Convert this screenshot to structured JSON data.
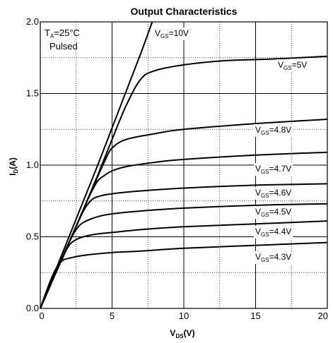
{
  "chart_data": {
    "type": "line",
    "title": "Output Characteristics",
    "xlabel": {
      "main": "V",
      "sub": "DS",
      "unit": "(V)"
    },
    "ylabel": {
      "main": "I",
      "sub": "D",
      "unit": "(A)"
    },
    "xlim": [
      0,
      20
    ],
    "ylim": [
      0,
      2.0
    ],
    "x_ticks": [
      0,
      5,
      10,
      15,
      20
    ],
    "x_tick_labels": [
      "0",
      "5",
      "10",
      "15",
      "20"
    ],
    "y_ticks": [
      0,
      0.5,
      1.0,
      1.5,
      2.0
    ],
    "y_tick_labels": [
      "0.0",
      "0.5",
      "1.0",
      "1.5",
      "2.0"
    ],
    "grid": {
      "major": "solid",
      "minor": "dotted"
    },
    "notes": [
      {
        "main": "T",
        "sub": "A",
        "rest": "=25°C"
      },
      {
        "main": "Pulsed",
        "sub": "",
        "rest": ""
      }
    ],
    "series": [
      {
        "label": {
          "main": "V",
          "sub": "GS",
          "rest": "=10V"
        },
        "x": [
          0,
          1,
          2,
          3,
          4,
          5,
          6,
          7,
          7.8
        ],
        "y": [
          0,
          0.25,
          0.5,
          0.75,
          1.0,
          1.26,
          1.52,
          1.78,
          2.0
        ]
      },
      {
        "label": {
          "main": "V",
          "sub": "GS",
          "rest": "=5V"
        },
        "x": [
          0,
          1,
          2,
          3,
          4,
          5,
          6,
          7,
          8,
          10,
          13,
          16,
          20
        ],
        "y": [
          0,
          0.23,
          0.46,
          0.69,
          0.93,
          1.18,
          1.42,
          1.6,
          1.66,
          1.7,
          1.73,
          1.74,
          1.76
        ]
      },
      {
        "label": {
          "main": "V",
          "sub": "GS",
          "rest": "=4.8V"
        },
        "x": [
          0,
          1,
          2,
          3,
          4,
          4.5,
          5,
          6,
          8,
          10,
          15,
          20
        ],
        "y": [
          0,
          0.23,
          0.46,
          0.69,
          0.92,
          1.03,
          1.12,
          1.18,
          1.22,
          1.25,
          1.29,
          1.32
        ]
      },
      {
        "label": {
          "main": "V",
          "sub": "GS",
          "rest": "=4.7V"
        },
        "x": [
          0,
          1,
          2,
          3,
          3.5,
          4,
          4.5,
          5,
          6,
          8,
          10,
          15,
          20
        ],
        "y": [
          0,
          0.23,
          0.46,
          0.69,
          0.8,
          0.89,
          0.93,
          0.96,
          0.99,
          1.02,
          1.04,
          1.07,
          1.09
        ]
      },
      {
        "label": {
          "main": "V",
          "sub": "GS",
          "rest": "=4.6V"
        },
        "x": [
          0,
          1,
          2,
          2.5,
          3,
          3.5,
          4,
          5,
          7,
          10,
          15,
          20
        ],
        "y": [
          0,
          0.23,
          0.46,
          0.57,
          0.68,
          0.75,
          0.78,
          0.8,
          0.82,
          0.84,
          0.86,
          0.87
        ]
      },
      {
        "label": {
          "main": "V",
          "sub": "GS",
          "rest": "=4.5V"
        },
        "x": [
          0,
          1,
          1.5,
          2,
          2.5,
          3,
          4,
          5,
          7,
          10,
          15,
          20
        ],
        "y": [
          0,
          0.23,
          0.35,
          0.46,
          0.55,
          0.6,
          0.64,
          0.66,
          0.68,
          0.7,
          0.72,
          0.73
        ]
      },
      {
        "label": {
          "main": "V",
          "sub": "GS",
          "rest": "=4.4V"
        },
        "x": [
          0,
          1,
          1.5,
          2,
          2.5,
          3,
          4,
          5,
          7,
          10,
          15,
          20
        ],
        "y": [
          0,
          0.23,
          0.34,
          0.44,
          0.48,
          0.5,
          0.52,
          0.53,
          0.55,
          0.57,
          0.59,
          0.61
        ]
      },
      {
        "label": {
          "main": "V",
          "sub": "GS",
          "rest": "=4.3V"
        },
        "x": [
          0,
          0.5,
          1,
          1.5,
          2,
          3,
          5,
          7,
          10,
          15,
          20
        ],
        "y": [
          0,
          0.14,
          0.26,
          0.33,
          0.35,
          0.37,
          0.39,
          0.4,
          0.42,
          0.44,
          0.46
        ]
      }
    ]
  }
}
